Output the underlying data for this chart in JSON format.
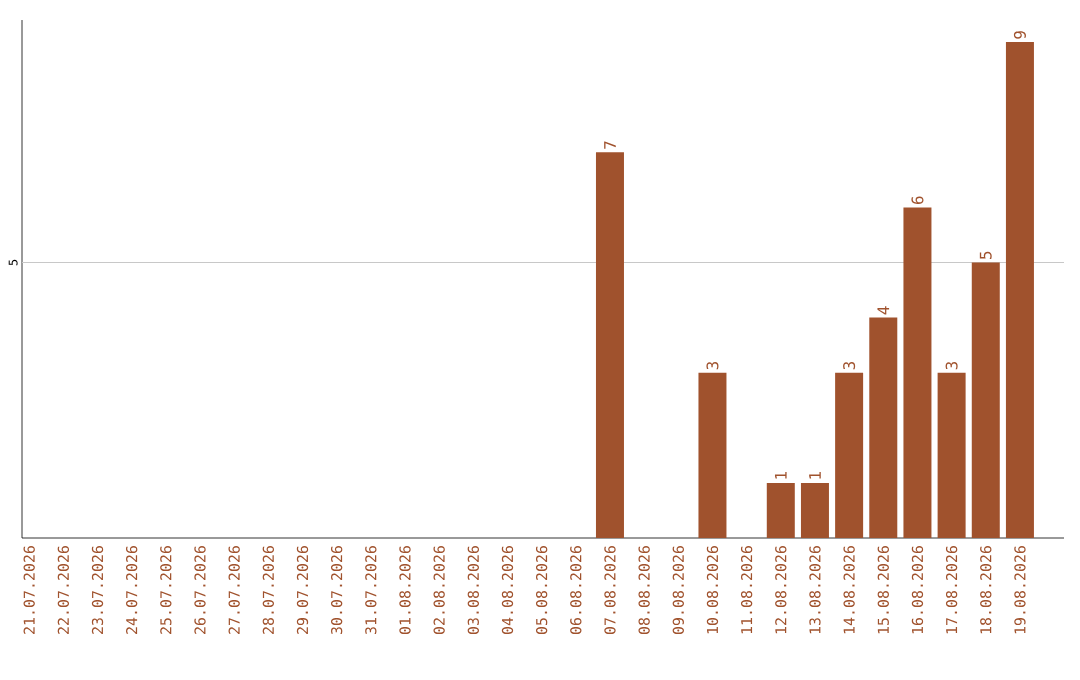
{
  "chart_data": {
    "type": "bar",
    "ylim": [
      0,
      9.4
    ],
    "categories": [
      "21.07.2026",
      "22.07.2026",
      "23.07.2026",
      "24.07.2026",
      "25.07.2026",
      "26.07.2026",
      "27.07.2026",
      "28.07.2026",
      "29.07.2026",
      "30.07.2026",
      "31.07.2026",
      "01.08.2026",
      "02.08.2026",
      "03.08.2026",
      "04.08.2026",
      "05.08.2026",
      "06.08.2026",
      "07.08.2026",
      "08.08.2026",
      "09.08.2026",
      "10.08.2026",
      "11.08.2026",
      "12.08.2026",
      "13.08.2026",
      "14.08.2026",
      "15.08.2026",
      "16.08.2026",
      "17.08.2026",
      "18.08.2026",
      "19.08.2026"
    ],
    "values": [
      null,
      null,
      null,
      null,
      null,
      null,
      null,
      null,
      null,
      null,
      null,
      null,
      null,
      null,
      null,
      null,
      null,
      7,
      null,
      null,
      3,
      null,
      1,
      1,
      3,
      4,
      6,
      3,
      5,
      9
    ],
    "data_labels": true,
    "color": "#a0522d",
    "ref_lines": [
      {
        "axis": "y",
        "value": 5,
        "label": "5",
        "color": "#c8c8c8"
      }
    ]
  }
}
